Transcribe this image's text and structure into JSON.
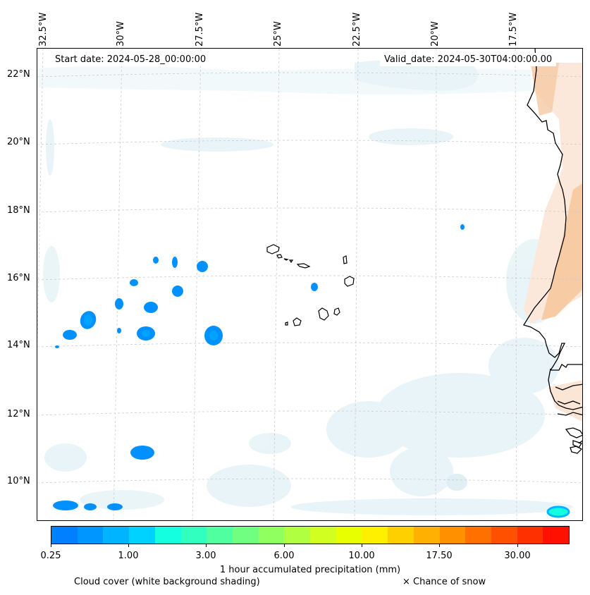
{
  "map": {
    "lon_labels": [
      "32.5°W",
      "30°W",
      "27.5°W",
      "25°W",
      "22.5°W",
      "20°W",
      "17.5°W"
    ],
    "lat_labels": [
      "22°N",
      "20°N",
      "18°N",
      "16°N",
      "14°N",
      "12°N",
      "10°N"
    ],
    "start_date": "Start date: 2024-05-28_00:00:00",
    "valid_date": "Valid_date: 2024-05-30T04:00:00.00"
  },
  "colorbar": {
    "tick_labels": [
      "0.25",
      "1.00",
      "3.00",
      "6.00",
      "10.00",
      "17.50",
      "30.00"
    ],
    "colors": [
      "#0080ff",
      "#0096ff",
      "#00b4ff",
      "#00d2ff",
      "#14ffe0",
      "#30ffc0",
      "#50ffa0",
      "#70ff80",
      "#90ff60",
      "#b0ff40",
      "#d0ff20",
      "#e8ff00",
      "#fff000",
      "#ffd000",
      "#ffb000",
      "#ff9000",
      "#ff7000",
      "#ff5000",
      "#ff3000",
      "#ff1000"
    ],
    "title": "1 hour accumulated precipitation (mm)"
  },
  "legend": {
    "cloud_cover": "Cloud cover (white background shading)",
    "snow": "× Chance of snow"
  }
}
